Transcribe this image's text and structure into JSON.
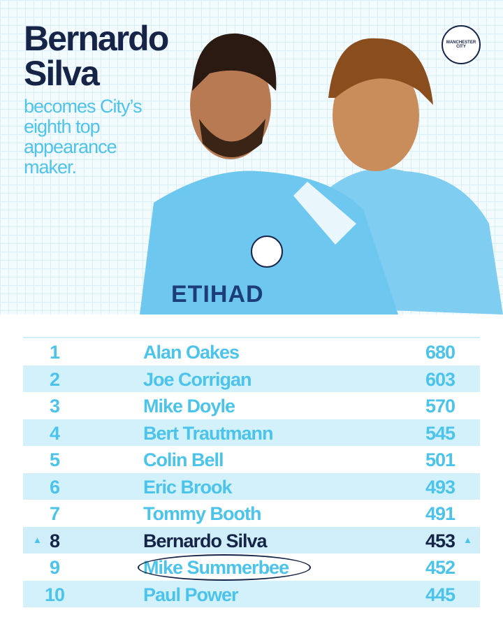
{
  "header": {
    "title": "Bernardo Silva",
    "subtitle": "becomes City’s eighth top appearance maker.",
    "badge": "MANCHESTER CITY",
    "shirt_sponsor": "ETIHAD"
  },
  "table": {
    "rows": [
      [
        1,
        "Alan Oakes",
        680
      ],
      [
        2,
        "Joe Corrigan",
        603
      ],
      [
        3,
        "Mike Doyle",
        570
      ],
      [
        4,
        "Bert Trautmann",
        545
      ],
      [
        5,
        "Colin Bell",
        501
      ],
      [
        6,
        "Eric Brook",
        493
      ],
      [
        7,
        "Tommy Booth",
        491
      ],
      [
        8,
        "Bernardo Silva",
        453
      ],
      [
        9,
        "Mike Summerbee",
        452
      ],
      [
        10,
        "Paul Power",
        445
      ]
    ]
  }
}
